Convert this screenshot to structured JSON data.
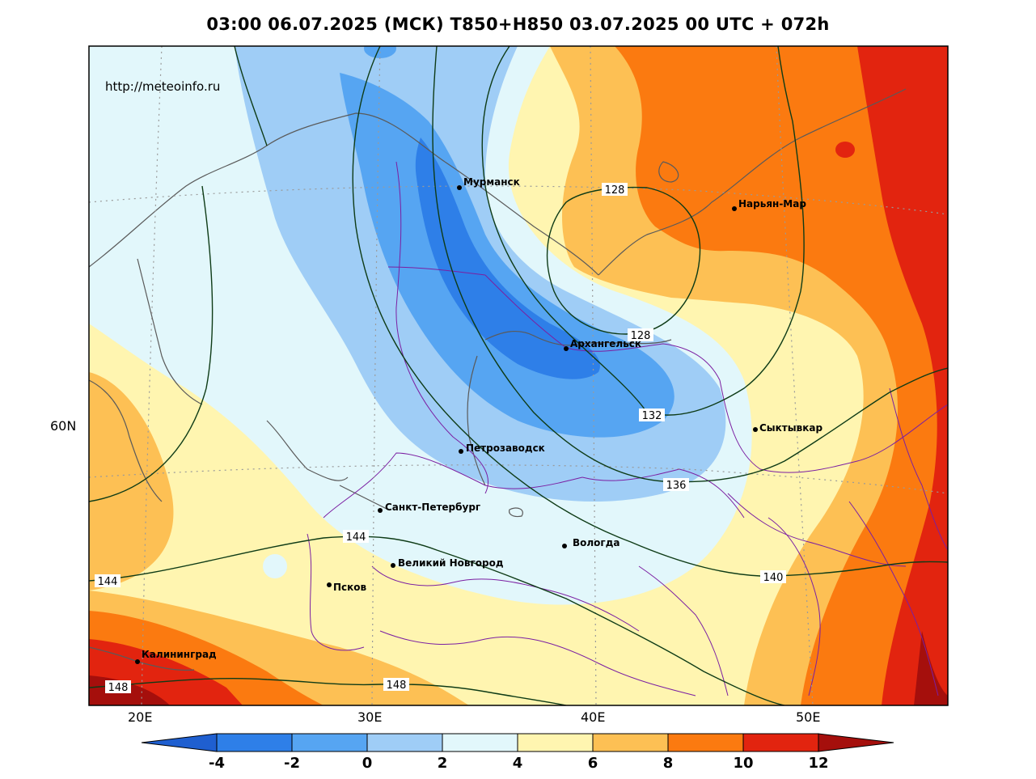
{
  "title": "03:00 06.07.2025 (МСК) T850+H850 03.07.2025 00 UTC + 072h",
  "url": "http://meteoinfo.ru",
  "axes": {
    "lat_labels": [
      "60N"
    ],
    "lon_labels": [
      "20E",
      "30E",
      "40E",
      "50E"
    ]
  },
  "cities": [
    {
      "name": "Мурманск"
    },
    {
      "name": "Нарьян-Мар"
    },
    {
      "name": "Архангельск"
    },
    {
      "name": "Сыктывкар"
    },
    {
      "name": "Петрозаводск"
    },
    {
      "name": "Санкт-Петербург"
    },
    {
      "name": "Вологда"
    },
    {
      "name": "Великий Новгород"
    },
    {
      "name": "Псков"
    },
    {
      "name": "Калининград"
    }
  ],
  "contour_labels": [
    "128",
    "128",
    "132",
    "136",
    "140",
    "144",
    "144",
    "148",
    "148"
  ],
  "colorbar": {
    "ticks": [
      "-4",
      "-2",
      "0",
      "2",
      "4",
      "6",
      "8",
      "10",
      "12"
    ],
    "colors": [
      "#1f5fd0",
      "#2e7fe8",
      "#56a5f2",
      "#9fcdf6",
      "#e2f7fb",
      "#fff5b0",
      "#fdc054",
      "#fb7a10",
      "#e2240f",
      "#a50f0c"
    ]
  }
}
